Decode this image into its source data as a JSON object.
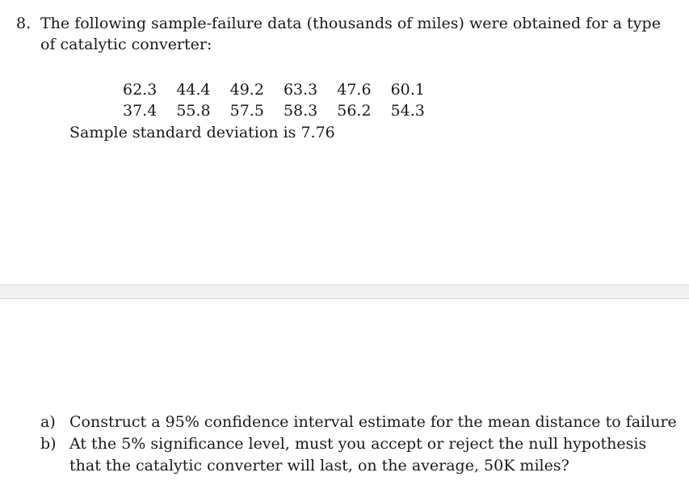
{
  "problem": {
    "number": "8.",
    "text_line1": "The following sample-failure data (thousands of miles) were obtained for a type",
    "text_line2": "of catalytic converter:"
  },
  "data_rows": [
    [
      "62.3",
      "44.4",
      "49.2",
      "63.3",
      "47.6",
      "60.1"
    ],
    [
      "37.4",
      "55.8",
      "57.5",
      "58.3",
      "56.2",
      "54.3"
    ]
  ],
  "sd_note": "Sample standard deviation is 7.76",
  "questions": [
    {
      "letter": "a)",
      "line1": "Construct a 95% confidence interval estimate for the mean distance to failure",
      "line2": ""
    },
    {
      "letter": "b)",
      "line1": "At the 5% significance level, must you accept or reject the null hypothesis",
      "line2": "that the catalytic converter will last, on the average, 50K miles?"
    }
  ]
}
